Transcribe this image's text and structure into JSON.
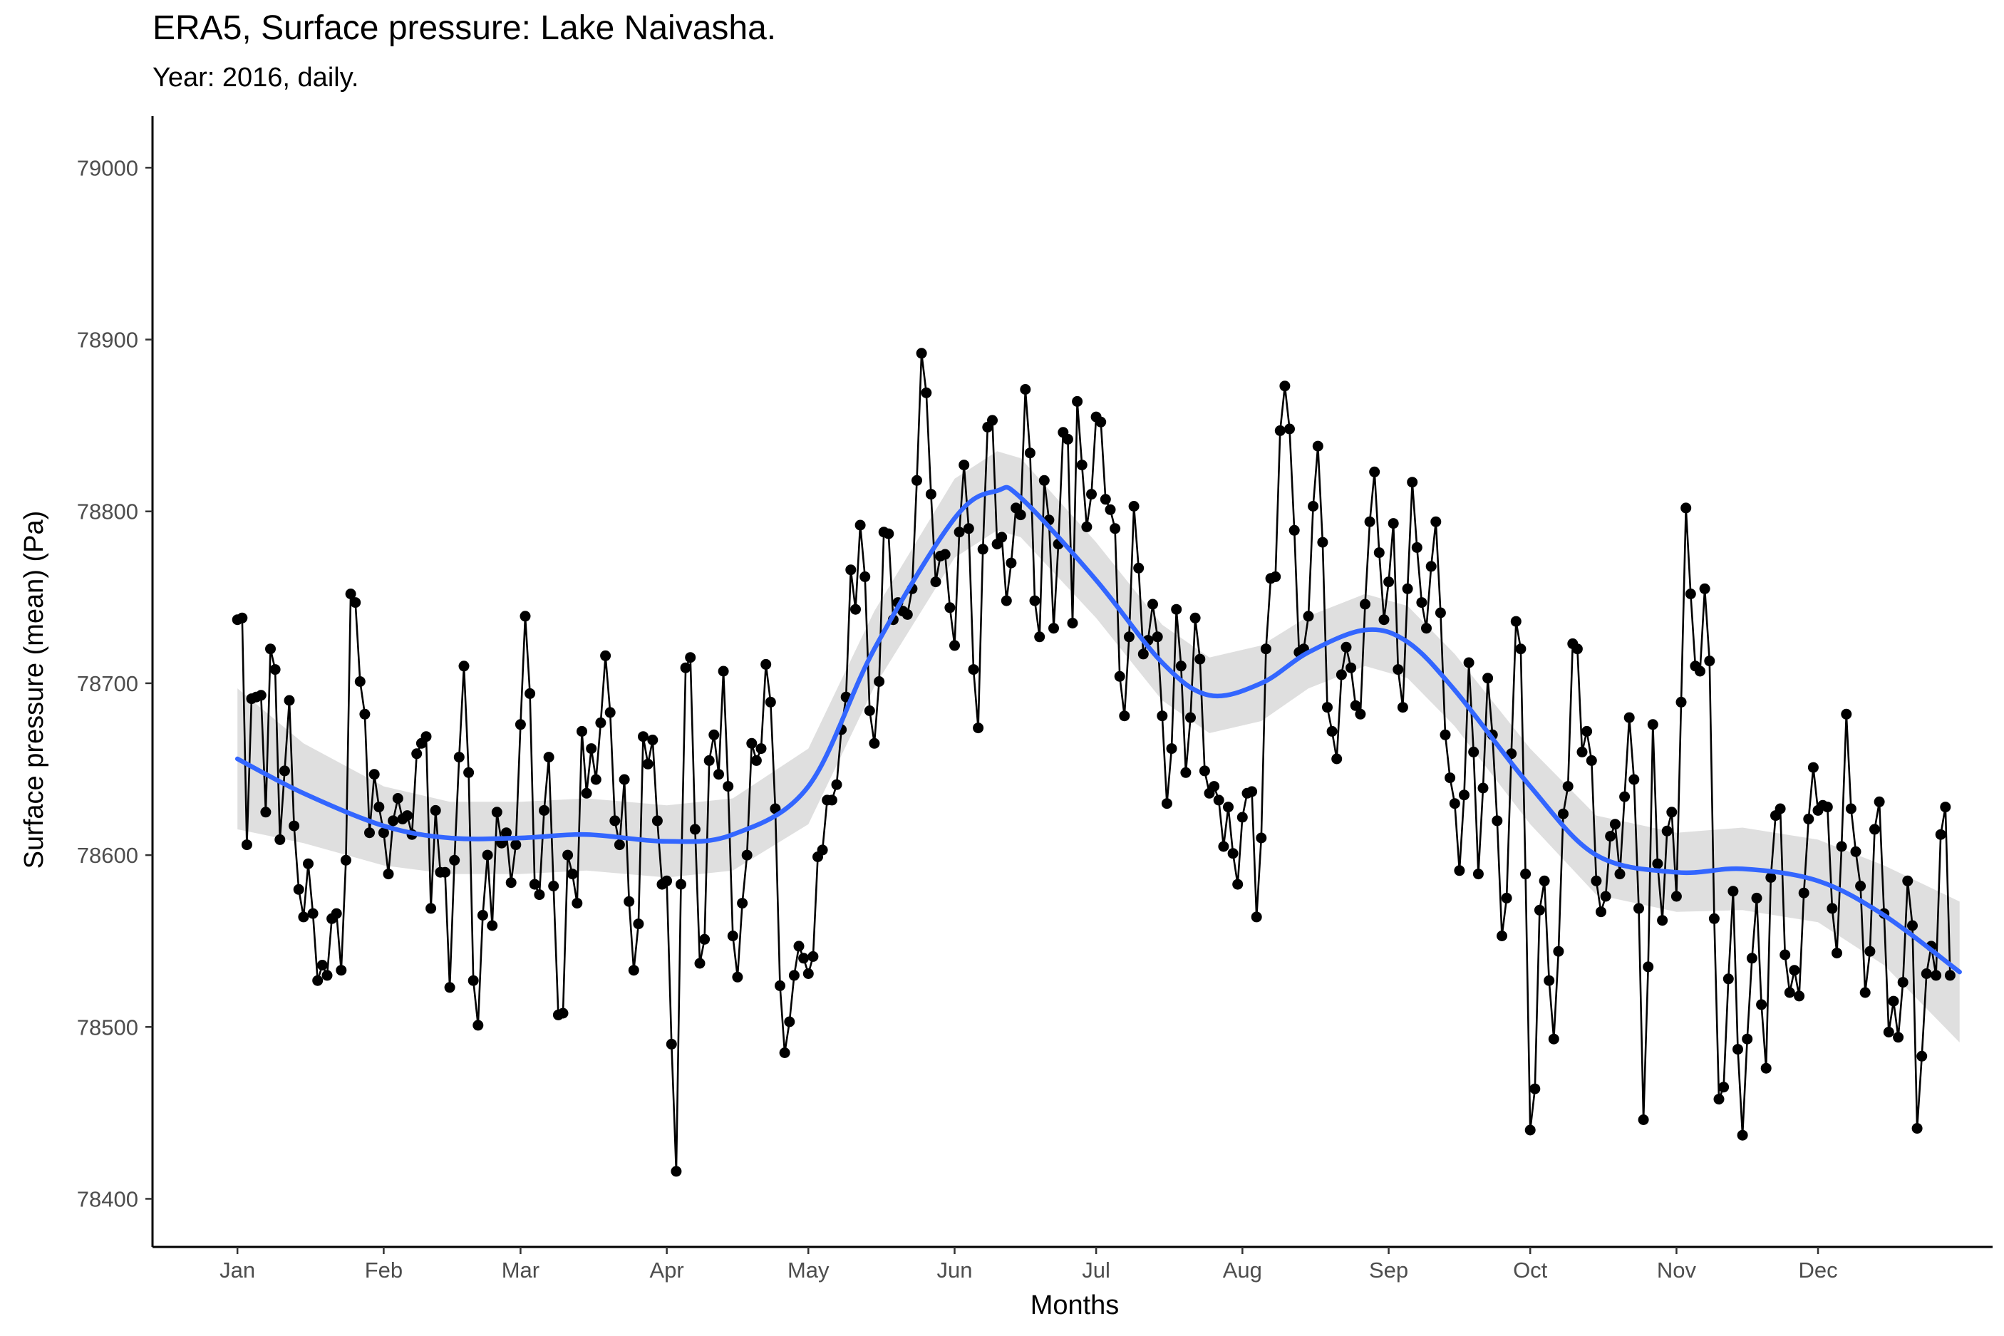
{
  "chart_data": {
    "type": "line",
    "title": "ERA5, Surface pressure: Lake Naivasha.",
    "subtitle": "Year: 2016, daily.",
    "xlabel": "Months",
    "ylabel": "Surface pressure (mean) (Pa)",
    "x_tick_labels": [
      "Jan",
      "Feb",
      "Mar",
      "Apr",
      "May",
      "Jun",
      "Jul",
      "Aug",
      "Sep",
      "Oct",
      "Nov",
      "Dec"
    ],
    "y_ticks": [
      78400,
      78500,
      78600,
      78700,
      78800,
      78900,
      79000
    ],
    "ylim": [
      78372,
      79030
    ],
    "xlim": [
      "2015-12-14",
      "2017-01-07"
    ],
    "grid": false,
    "legend": "none",
    "colors": {
      "points": "#000000",
      "line": "#000000",
      "smooth": "#3366ff",
      "band": "#d9d9d9"
    },
    "series": [
      {
        "type": "line+points",
        "x_start": "2016-01-01",
        "interval": "daily",
        "values": [
          78737,
          78738,
          78606,
          78691,
          78692,
          78693,
          78625,
          78720,
          78708,
          78609,
          78649,
          78690,
          78617,
          78580,
          78564,
          78595,
          78566,
          78527,
          78536,
          78530,
          78563,
          78566,
          78533,
          78597,
          78752,
          78747,
          78701,
          78682,
          78613,
          78647,
          78628,
          78613,
          78589,
          78620,
          78633,
          78621,
          78623,
          78612,
          78659,
          78665,
          78669,
          78569,
          78626,
          78590,
          78590,
          78523,
          78597,
          78657,
          78710,
          78648,
          78527,
          78501,
          78565,
          78600,
          78559,
          78625,
          78607,
          78613,
          78584,
          78606,
          78676,
          78739,
          78694,
          78583,
          78577,
          78626,
          78657,
          78582,
          78507,
          78508,
          78600,
          78589,
          78572,
          78672,
          78636,
          78662,
          78644,
          78677,
          78716,
          78683,
          78620,
          78606,
          78644,
          78573,
          78533,
          78560,
          78669,
          78653,
          78667,
          78620,
          78583,
          78585,
          78490,
          78416,
          78583,
          78709,
          78715,
          78615,
          78537,
          78551,
          78655,
          78670,
          78647,
          78707,
          78640,
          78553,
          78529,
          78572,
          78600,
          78665,
          78655,
          78662,
          78711,
          78689,
          78627,
          78524,
          78485,
          78503,
          78530,
          78547,
          78540,
          78531,
          78541,
          78599,
          78603,
          78632,
          78632,
          78641,
          78673,
          78692,
          78766,
          78743,
          78792,
          78762,
          78684,
          78665,
          78701,
          78788,
          78787,
          78737,
          78747,
          78742,
          78740,
          78755,
          78818,
          78892,
          78869,
          78810,
          78759,
          78774,
          78775,
          78744,
          78722,
          78788,
          78827,
          78790,
          78708,
          78674,
          78778,
          78849,
          78853,
          78781,
          78785,
          78748,
          78770,
          78802,
          78798,
          78871,
          78834,
          78748,
          78727,
          78818,
          78795,
          78732,
          78781,
          78846,
          78842,
          78735,
          78864,
          78827,
          78791,
          78810,
          78855,
          78852,
          78807,
          78801,
          78790,
          78704,
          78681,
          78727,
          78803,
          78767,
          78717,
          78725,
          78746,
          78727,
          78681,
          78630,
          78662,
          78743,
          78710,
          78648,
          78680,
          78738,
          78714,
          78649,
          78636,
          78640,
          78632,
          78605,
          78628,
          78601,
          78583,
          78622,
          78636,
          78637,
          78564,
          78610,
          78720,
          78761,
          78762,
          78847,
          78873,
          78848,
          78789,
          78718,
          78720,
          78739,
          78803,
          78838,
          78782,
          78686,
          78672,
          78656,
          78705,
          78721,
          78709,
          78687,
          78682,
          78746,
          78794,
          78823,
          78776,
          78737,
          78759,
          78793,
          78708,
          78686,
          78755,
          78817,
          78779,
          78747,
          78732,
          78768,
          78794,
          78741,
          78670,
          78645,
          78630,
          78591,
          78635,
          78712,
          78660,
          78589,
          78639,
          78703,
          78670,
          78620,
          78553,
          78575,
          78659,
          78736,
          78720,
          78589,
          78440,
          78464,
          78568,
          78585,
          78527,
          78493,
          78544,
          78624,
          78640,
          78723,
          78720,
          78660,
          78672,
          78655,
          78585,
          78567,
          78576,
          78611,
          78618,
          78589,
          78634,
          78680,
          78644,
          78569,
          78446,
          78535,
          78676,
          78595,
          78562,
          78614,
          78625,
          78576,
          78689,
          78802,
          78752,
          78710,
          78707,
          78755,
          78713,
          78563,
          78458,
          78465,
          78528,
          78579,
          78487,
          78437,
          78493,
          78540,
          78575,
          78513,
          78476,
          78587,
          78623,
          78627,
          78542,
          78520,
          78533,
          78518,
          78578,
          78621,
          78651,
          78626,
          78629,
          78628,
          78569,
          78543,
          78605,
          78682,
          78627,
          78602,
          78582,
          78520,
          78544,
          78615,
          78631,
          78566,
          78497,
          78515,
          78494,
          78526,
          78585,
          78559,
          78441,
          78483,
          78531,
          78547,
          78530,
          78612,
          78628,
          78530
        ]
      },
      {
        "type": "smooth",
        "x": [
          "2016-01-01",
          "2016-01-15",
          "2016-02-01",
          "2016-02-15",
          "2016-03-01",
          "2016-03-15",
          "2016-04-01",
          "2016-04-15",
          "2016-05-01",
          "2016-05-15",
          "2016-06-01",
          "2016-06-10",
          "2016-06-15",
          "2016-07-01",
          "2016-07-15",
          "2016-07-25",
          "2016-08-05",
          "2016-08-15",
          "2016-08-27",
          "2016-09-05",
          "2016-09-15",
          "2016-10-01",
          "2016-10-15",
          "2016-11-01",
          "2016-11-15",
          "2016-12-01",
          "2016-12-15",
          "2016-12-31"
        ],
        "y": [
          78656,
          78636,
          78617,
          78610,
          78610,
          78612,
          78608,
          78612,
          78640,
          78720,
          78796,
          78812,
          78808,
          78760,
          78712,
          78693,
          78700,
          78718,
          78731,
          78724,
          78696,
          78640,
          78600,
          78590,
          78592,
          78585,
          78565,
          78532
        ],
        "band_halfwidth": [
          41,
          29,
          23,
          21,
          21,
          21,
          21,
          21,
          22,
          22,
          23,
          23,
          23,
          22,
          22,
          22,
          22,
          21,
          21,
          21,
          21,
          22,
          23,
          23,
          24,
          24,
          29,
          41
        ]
      }
    ]
  }
}
